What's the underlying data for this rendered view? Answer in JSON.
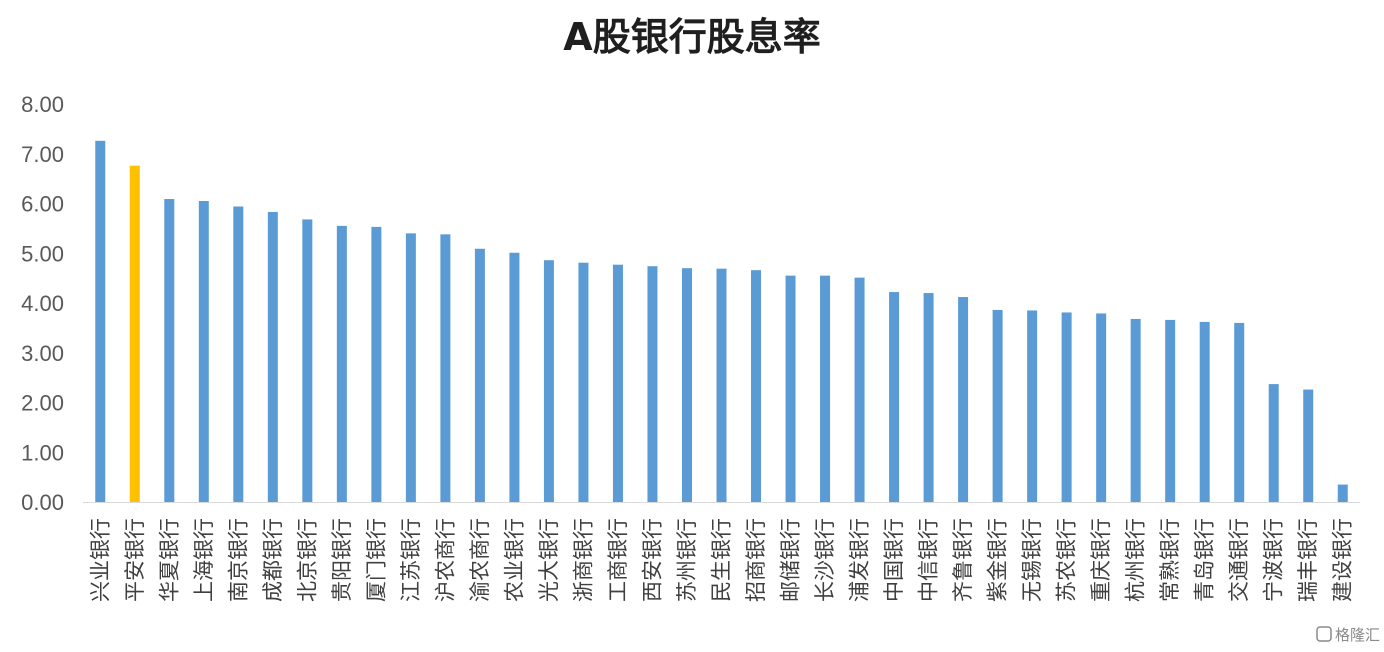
{
  "chart_data": {
    "type": "bar",
    "title": "A股银行股息率",
    "xlabel": "",
    "ylabel": "",
    "ylim": [
      0,
      8
    ],
    "yticks": [
      "0.00",
      "1.00",
      "2.00",
      "3.00",
      "4.00",
      "5.00",
      "6.00",
      "7.00",
      "8.00"
    ],
    "grid": false,
    "legend": "none",
    "categories": [
      "兴业银行",
      "平安银行",
      "华夏银行",
      "上海银行",
      "南京银行",
      "成都银行",
      "北京银行",
      "贵阳银行",
      "厦门银行",
      "江苏银行",
      "沪农商行",
      "渝农商行",
      "农业银行",
      "光大银行",
      "浙商银行",
      "工商银行",
      "西安银行",
      "苏州银行",
      "民生银行",
      "招商银行",
      "邮储银行",
      "长沙银行",
      "浦发银行",
      "中国银行",
      "中信银行",
      "齐鲁银行",
      "紫金银行",
      "无锡银行",
      "苏农银行",
      "重庆银行",
      "杭州银行",
      "常熟银行",
      "青岛银行",
      "交通银行",
      "宁波银行",
      "瑞丰银行",
      "建设银行"
    ],
    "values": [
      7.26,
      6.76,
      6.09,
      6.05,
      5.94,
      5.83,
      5.68,
      5.55,
      5.53,
      5.4,
      5.38,
      5.09,
      5.01,
      4.86,
      4.81,
      4.77,
      4.74,
      4.7,
      4.69,
      4.66,
      4.55,
      4.55,
      4.51,
      4.22,
      4.2,
      4.12,
      3.86,
      3.85,
      3.81,
      3.79,
      3.68,
      3.66,
      3.62,
      3.6,
      2.37,
      2.26,
      0.35
    ],
    "colors": {
      "default": "#5B9BD5",
      "highlight": "#FFC000"
    },
    "highlight_category": "平安银行"
  },
  "watermark": {
    "text": "格隆汇"
  }
}
